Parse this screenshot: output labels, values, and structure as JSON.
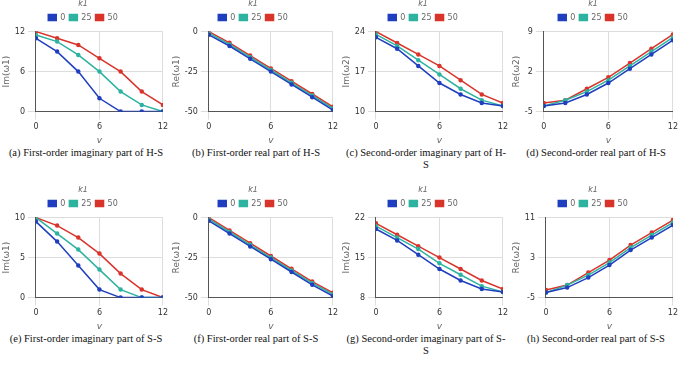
{
  "chart_data": [
    {
      "type": "line",
      "title": "(a) First-order imaginary part of H-S",
      "xlabel": "v",
      "ylabel": "Im(ω1)",
      "legend_title": "k1",
      "legend": "top",
      "grid": true,
      "x": [
        0,
        2,
        4,
        6,
        8,
        10,
        12
      ],
      "xlim": [
        0,
        12
      ],
      "xticks": [
        0,
        6,
        12
      ],
      "ylim": [
        0,
        12
      ],
      "yticks": [
        0,
        6,
        12
      ],
      "series": [
        {
          "name": "0",
          "color": "#1f3fbf",
          "values": [
            11,
            9,
            6,
            2,
            0,
            0,
            0
          ]
        },
        {
          "name": "25",
          "color": "#2db3a0",
          "values": [
            11.5,
            10.5,
            8.5,
            6,
            3,
            1,
            0
          ]
        },
        {
          "name": "50",
          "color": "#d9342b",
          "values": [
            12,
            11,
            10,
            8,
            6,
            3,
            1
          ]
        }
      ]
    },
    {
      "type": "line",
      "title": "(b) First-order real part of H-S",
      "xlabel": "v",
      "ylabel": "Re(ω1)",
      "legend_title": "k1",
      "legend": "top",
      "grid": true,
      "x": [
        0,
        2,
        4,
        6,
        8,
        10,
        12
      ],
      "xlim": [
        0,
        12
      ],
      "xticks": [
        0,
        6,
        12
      ],
      "ylim": [
        -50,
        0
      ],
      "yticks": [
        -50,
        -25,
        0
      ],
      "series": [
        {
          "name": "0",
          "color": "#1f3fbf",
          "values": [
            -2,
            -9,
            -17,
            -25,
            -33,
            -41,
            -49
          ]
        },
        {
          "name": "25",
          "color": "#2db3a0",
          "values": [
            -1,
            -8,
            -16,
            -24,
            -32,
            -40,
            -48
          ]
        },
        {
          "name": "50",
          "color": "#d9342b",
          "values": [
            0,
            -7,
            -15,
            -23,
            -31,
            -39,
            -47
          ]
        }
      ]
    },
    {
      "type": "line",
      "title": "(c) Second-order imaginary part of H-S",
      "xlabel": "v",
      "ylabel": "Im(ω2)",
      "legend_title": "k1",
      "legend": "top",
      "grid": true,
      "x": [
        0,
        2,
        4,
        6,
        8,
        10,
        12
      ],
      "xlim": [
        0,
        12
      ],
      "xticks": [
        0,
        6,
        12
      ],
      "ylim": [
        10,
        24
      ],
      "yticks": [
        10,
        17,
        24
      ],
      "series": [
        {
          "name": "0",
          "color": "#1f3fbf",
          "values": [
            23,
            21,
            18,
            15,
            13,
            11.5,
            11
          ]
        },
        {
          "name": "25",
          "color": "#2db3a0",
          "values": [
            23.5,
            21.5,
            19,
            16.5,
            14,
            12,
            11
          ]
        },
        {
          "name": "50",
          "color": "#d9342b",
          "values": [
            24,
            22,
            20,
            18,
            15.5,
            13,
            11.5
          ]
        }
      ]
    },
    {
      "type": "line",
      "title": "(d) Second-order real part of H-S",
      "xlabel": "v",
      "ylabel": "Re(ω2)",
      "legend_title": "k1",
      "legend": "top",
      "grid": true,
      "x": [
        0,
        2,
        4,
        6,
        8,
        10,
        12
      ],
      "xlim": [
        0,
        12
      ],
      "xticks": [
        0,
        6,
        12
      ],
      "ylim": [
        -5,
        9
      ],
      "yticks": [
        -5,
        2,
        9
      ],
      "series": [
        {
          "name": "0",
          "color": "#1f3fbf",
          "values": [
            -4,
            -3.5,
            -2,
            0,
            2.5,
            5,
            7.5
          ]
        },
        {
          "name": "25",
          "color": "#2db3a0",
          "values": [
            -4,
            -3,
            -1.5,
            0.5,
            3,
            5.5,
            8
          ]
        },
        {
          "name": "50",
          "color": "#d9342b",
          "values": [
            -3.5,
            -3,
            -1,
            1,
            3.5,
            6,
            8.5
          ]
        }
      ]
    },
    {
      "type": "line",
      "title": "(e) First-order imaginary part of S-S",
      "xlabel": "v",
      "ylabel": "Im(ω1)",
      "legend_title": "k1",
      "legend": "top",
      "grid": true,
      "x": [
        0,
        2,
        4,
        6,
        8,
        10,
        12
      ],
      "xlim": [
        0,
        12
      ],
      "xticks": [
        0,
        6,
        12
      ],
      "ylim": [
        0,
        10
      ],
      "yticks": [
        0,
        5,
        10
      ],
      "series": [
        {
          "name": "0",
          "color": "#1f3fbf",
          "values": [
            9.5,
            7,
            4,
            1,
            0,
            0,
            0
          ]
        },
        {
          "name": "25",
          "color": "#2db3a0",
          "values": [
            10,
            8,
            6,
            3.5,
            1,
            0,
            0
          ]
        },
        {
          "name": "50",
          "color": "#d9342b",
          "values": [
            10,
            9,
            7.5,
            5.5,
            3,
            1,
            0
          ]
        }
      ]
    },
    {
      "type": "line",
      "title": "(f) First-order real part of S-S",
      "xlabel": "v",
      "ylabel": "Re(ω1)",
      "legend_title": "k1",
      "legend": "top",
      "grid": true,
      "x": [
        0,
        2,
        4,
        6,
        8,
        10,
        12
      ],
      "xlim": [
        0,
        12
      ],
      "xticks": [
        0,
        6,
        12
      ],
      "ylim": [
        -50,
        0
      ],
      "yticks": [
        -50,
        -25,
        0
      ],
      "series": [
        {
          "name": "0",
          "color": "#1f3fbf",
          "values": [
            -2,
            -10,
            -18,
            -26,
            -34,
            -42,
            -49
          ]
        },
        {
          "name": "25",
          "color": "#2db3a0",
          "values": [
            -1,
            -9,
            -17,
            -25,
            -33,
            -41,
            -48
          ]
        },
        {
          "name": "50",
          "color": "#d9342b",
          "values": [
            0,
            -8,
            -16,
            -24,
            -32,
            -40,
            -47
          ]
        }
      ]
    },
    {
      "type": "line",
      "title": "(g) Second-order imaginary part of S-S",
      "xlabel": "v",
      "ylabel": "Im(ω2)",
      "legend_title": "k1",
      "legend": "top",
      "grid": true,
      "x": [
        0,
        2,
        4,
        6,
        8,
        10,
        12
      ],
      "xlim": [
        0,
        12
      ],
      "xticks": [
        0,
        6,
        12
      ],
      "ylim": [
        8,
        22
      ],
      "yticks": [
        8,
        15,
        22
      ],
      "series": [
        {
          "name": "0",
          "color": "#1f3fbf",
          "values": [
            20,
            18,
            15.5,
            13,
            11,
            9.5,
            9
          ]
        },
        {
          "name": "25",
          "color": "#2db3a0",
          "values": [
            20.5,
            18.5,
            16.5,
            14,
            12,
            10,
            9
          ]
        },
        {
          "name": "50",
          "color": "#d9342b",
          "values": [
            21,
            19,
            17,
            15,
            13,
            11,
            9.5
          ]
        }
      ]
    },
    {
      "type": "line",
      "title": "(h) Second-order real part of S-S",
      "xlabel": "v",
      "ylabel": "Re(ω2)",
      "legend_title": "k1",
      "legend": "top",
      "grid": true,
      "x": [
        0,
        2,
        4,
        6,
        8,
        10,
        12
      ],
      "xlim": [
        0,
        12
      ],
      "xticks": [
        0,
        6,
        12
      ],
      "ylim": [
        -5,
        11
      ],
      "yticks": [
        -5,
        3,
        11
      ],
      "series": [
        {
          "name": "0",
          "color": "#1f3fbf",
          "values": [
            -4,
            -3,
            -1,
            1.5,
            4.5,
            7,
            9.5
          ]
        },
        {
          "name": "25",
          "color": "#2db3a0",
          "values": [
            -4,
            -2.5,
            -0.5,
            2,
            5,
            7.5,
            10
          ]
        },
        {
          "name": "50",
          "color": "#d9342b",
          "values": [
            -3.5,
            -2.5,
            0,
            2.5,
            5.5,
            8,
            10.5
          ]
        }
      ]
    }
  ]
}
